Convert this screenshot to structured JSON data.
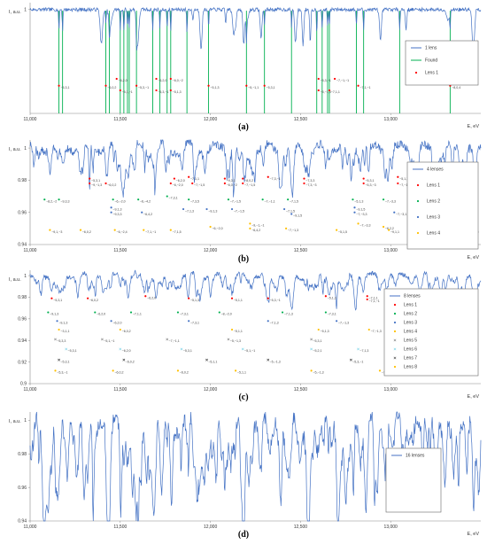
{
  "chart_data": [
    {
      "panel_label": "(a)",
      "type": "line",
      "xlabel": "E, eV",
      "ylabel": "I, a.u.",
      "xlim": [
        11000,
        13500
      ],
      "ylim": [
        0.955,
        1.003
      ],
      "x_ticks": [
        "11,000",
        "11,500",
        "12,000",
        "12,500",
        "13,000"
      ],
      "y_ticks": [
        "1"
      ],
      "legend": {
        "placement": "right",
        "entries": [
          "1 lens",
          "Found",
          "Lens 1"
        ]
      },
      "series_colors": [
        "#4472C4",
        "#00B050",
        "#FF0000"
      ],
      "found_lines": [
        11160,
        11180,
        11420,
        11440,
        11500,
        11520,
        11540,
        11550,
        11590,
        11680,
        11720,
        11760,
        11780,
        11870,
        11990,
        12200,
        12300,
        12450,
        12590,
        12620,
        12650,
        12660,
        12810,
        12850,
        13050,
        13330
      ],
      "markers": [
        {
          "x": 11160,
          "y": 0.967,
          "label": "−5,3,1"
        },
        {
          "x": 11420,
          "y": 0.967,
          "label": "−6,0,2"
        },
        {
          "x": 11480,
          "y": 0.97,
          "label": "−6,2,0"
        },
        {
          "x": 11500,
          "y": 0.965,
          "label": "−5,1,−1"
        },
        {
          "x": 11590,
          "y": 0.967,
          "label": "−5,3,−1"
        },
        {
          "x": 11700,
          "y": 0.97,
          "label": "−6,2,0"
        },
        {
          "x": 11700,
          "y": 0.965,
          "label": "−5,3,−1"
        },
        {
          "x": 11780,
          "y": 0.97,
          "label": "−6,0,−2"
        },
        {
          "x": 11780,
          "y": 0.965,
          "label": "−5,1,3"
        },
        {
          "x": 11990,
          "y": 0.967,
          "label": "−5,1,3"
        },
        {
          "x": 12200,
          "y": 0.967,
          "label": "−5,−1,1"
        },
        {
          "x": 12300,
          "y": 0.967,
          "label": "−5,3,1"
        },
        {
          "x": 12600,
          "y": 0.97,
          "label": "−5,3,−1"
        },
        {
          "x": 12600,
          "y": 0.965,
          "label": "−5,−1,3"
        },
        {
          "x": 12690,
          "y": 0.97,
          "label": "−7,−1,−1"
        },
        {
          "x": 12660,
          "y": 0.965,
          "label": "−7,1,1"
        },
        {
          "x": 12820,
          "y": 0.967,
          "label": "−7,1,−1"
        },
        {
          "x": 13330,
          "y": 0.967,
          "label": "−8,0,4"
        }
      ]
    },
    {
      "panel_label": "(b)",
      "type": "line",
      "xlabel": "E, eV",
      "ylabel": "I, a.u.",
      "xlim": [
        11000,
        13500
      ],
      "ylim": [
        0.94,
        1.005
      ],
      "x_ticks": [
        "11,000",
        "11,500",
        "12,000",
        "12,500",
        "13,000"
      ],
      "y_ticks": [
        "0.94",
        "0.96",
        "0.98",
        "1"
      ],
      "legend": {
        "placement": "right",
        "entries": [
          "4 lenses",
          "Lens 1",
          "Lens 2",
          "Lens 3",
          "Lens 4"
        ]
      },
      "series_colors": [
        "#4472C4",
        "#FF0000",
        "#00B050",
        "#4472C4",
        "#FFC000"
      ],
      "markers": [
        {
          "s": 0,
          "x": 11330,
          "y": 0.981,
          "label": "−5,3,1"
        },
        {
          "s": 0,
          "x": 11330,
          "y": 0.978,
          "label": "−9,−1,3"
        },
        {
          "s": 0,
          "x": 11420,
          "y": 0.978,
          "label": "−6,0,2"
        },
        {
          "s": 0,
          "x": 11800,
          "y": 0.981,
          "label": "−6,2,0"
        },
        {
          "s": 0,
          "x": 11780,
          "y": 0.978,
          "label": "−6,−2,0"
        },
        {
          "s": 0,
          "x": 11880,
          "y": 0.982,
          "label": "−7,1,1"
        },
        {
          "s": 0,
          "x": 11900,
          "y": 0.978,
          "label": "−7,−1,5"
        },
        {
          "s": 0,
          "x": 12080,
          "y": 0.981,
          "label": "−9,3,1"
        },
        {
          "s": 0,
          "x": 12080,
          "y": 0.978,
          "label": "−6,0,−2"
        },
        {
          "s": 0,
          "x": 12180,
          "y": 0.981,
          "label": "−8,0,2"
        },
        {
          "s": 0,
          "x": 12180,
          "y": 0.978,
          "label": "−7,−1,5"
        },
        {
          "s": 0,
          "x": 12320,
          "y": 0.982,
          "label": "−7,3,−1"
        },
        {
          "s": 0,
          "x": 12520,
          "y": 0.981,
          "label": "−7,3,3"
        },
        {
          "s": 0,
          "x": 12520,
          "y": 0.978,
          "label": "−7,3,−3"
        },
        {
          "s": 0,
          "x": 12850,
          "y": 0.981,
          "label": "−5,3,1"
        },
        {
          "s": 0,
          "x": 12850,
          "y": 0.978,
          "label": "−5,3,−3"
        },
        {
          "s": 0,
          "x": 13040,
          "y": 0.982,
          "label": "−5,1,3"
        },
        {
          "s": 0,
          "x": 13040,
          "y": 0.978,
          "label": "−7,−1,3"
        },
        {
          "s": 0,
          "x": 13140,
          "y": 0.978,
          "label": "−5,1,−3"
        },
        {
          "s": 0,
          "x": 13330,
          "y": 0.978,
          "label": "−8,2,−2"
        },
        {
          "s": 1,
          "x": 11080,
          "y": 0.968,
          "label": "−8,2,−2"
        },
        {
          "s": 1,
          "x": 11160,
          "y": 0.968,
          "label": "−9,3,3"
        },
        {
          "s": 1,
          "x": 11460,
          "y": 0.968,
          "label": "−6,−2,0"
        },
        {
          "s": 1,
          "x": 11600,
          "y": 0.968,
          "label": "−6,−4,2"
        },
        {
          "s": 1,
          "x": 11760,
          "y": 0.97,
          "label": "−7,3,1"
        },
        {
          "s": 1,
          "x": 11880,
          "y": 0.968,
          "label": "−7,3,5"
        },
        {
          "s": 1,
          "x": 12100,
          "y": 0.968,
          "label": "−7,−1,5"
        },
        {
          "s": 1,
          "x": 12290,
          "y": 0.968,
          "label": "−7,−1,1"
        },
        {
          "s": 1,
          "x": 12430,
          "y": 0.968,
          "label": "−7,1,5"
        },
        {
          "s": 1,
          "x": 12790,
          "y": 0.968,
          "label": "−5,1,3"
        },
        {
          "s": 1,
          "x": 12960,
          "y": 0.968,
          "label": "−7,−3,3"
        },
        {
          "s": 1,
          "x": 13160,
          "y": 0.968,
          "label": "−8,0,4"
        },
        {
          "s": 1,
          "x": 13330,
          "y": 0.968,
          "label": "−9,1,3"
        },
        {
          "s": 2,
          "x": 11450,
          "y": 0.963,
          "label": "−9,1,3"
        },
        {
          "s": 2,
          "x": 11450,
          "y": 0.96,
          "label": "−9,3,3"
        },
        {
          "s": 2,
          "x": 11620,
          "y": 0.96,
          "label": "−6,4,2"
        },
        {
          "s": 2,
          "x": 11850,
          "y": 0.962,
          "label": "−7,1,3"
        },
        {
          "s": 2,
          "x": 11980,
          "y": 0.962,
          "label": "−9,1,3"
        },
        {
          "s": 2,
          "x": 12120,
          "y": 0.962,
          "label": "−7,−1,5"
        },
        {
          "s": 2,
          "x": 12410,
          "y": 0.962,
          "label": "−7,1,5"
        },
        {
          "s": 2,
          "x": 12450,
          "y": 0.959,
          "label": "−9,1,5"
        },
        {
          "s": 2,
          "x": 12800,
          "y": 0.963,
          "label": "−9,1,5"
        },
        {
          "s": 2,
          "x": 12800,
          "y": 0.96,
          "label": "−7,−3,3"
        },
        {
          "s": 2,
          "x": 13020,
          "y": 0.96,
          "label": "−7,−3,1"
        },
        {
          "s": 2,
          "x": 13380,
          "y": 0.963,
          "label": "−8,0,0"
        },
        {
          "s": 2,
          "x": 13410,
          "y": 0.96,
          "label": "−8,−4,0"
        },
        {
          "s": 3,
          "x": 11110,
          "y": 0.949,
          "label": "−9,1,−3"
        },
        {
          "s": 3,
          "x": 11280,
          "y": 0.949,
          "label": "−6,0,2"
        },
        {
          "s": 3,
          "x": 11470,
          "y": 0.949,
          "label": "−6,−2,4"
        },
        {
          "s": 3,
          "x": 11630,
          "y": 0.949,
          "label": "−7,1,−1"
        },
        {
          "s": 3,
          "x": 11780,
          "y": 0.949,
          "label": "−7,1,5"
        },
        {
          "s": 3,
          "x": 12000,
          "y": 0.951,
          "label": "−6,−2,0"
        },
        {
          "s": 3,
          "x": 12220,
          "y": 0.953,
          "label": "−9,−1,−1"
        },
        {
          "s": 3,
          "x": 12220,
          "y": 0.95,
          "label": "−6,4,2"
        },
        {
          "s": 3,
          "x": 12420,
          "y": 0.95,
          "label": "−7,−1,3"
        },
        {
          "s": 3,
          "x": 12820,
          "y": 0.953,
          "label": "−7,−3,3"
        },
        {
          "s": 3,
          "x": 12700,
          "y": 0.949,
          "label": "−5,1,5"
        },
        {
          "s": 3,
          "x": 12960,
          "y": 0.951,
          "label": "−6,2,2"
        },
        {
          "s": 3,
          "x": 12990,
          "y": 0.949,
          "label": "−9,1,1"
        },
        {
          "s": 3,
          "x": 13150,
          "y": 0.949,
          "label": "−7,−1,5"
        },
        {
          "s": 3,
          "x": 13290,
          "y": 0.949,
          "label": "−7,−3,3"
        },
        {
          "s": 3,
          "x": 13430,
          "y": 0.949,
          "label": "−8,0,0"
        }
      ]
    },
    {
      "panel_label": "(c)",
      "type": "line",
      "xlabel": "E, eV",
      "ylabel": "I, a.u.",
      "xlim": [
        11000,
        13500
      ],
      "ylim": [
        0.9,
        1.005
      ],
      "x_ticks": [
        "11,000",
        "11,500",
        "12,000",
        "12,500",
        "13,000"
      ],
      "y_ticks": [
        "0.9",
        "0.92",
        "0.94",
        "0.96",
        "0.98",
        "1"
      ],
      "legend": {
        "placement": "right",
        "entries": [
          "8 lenses",
          "Lens 1",
          "Lens 2",
          "Lens 3",
          "Lens 4",
          "Lens 5",
          "Lens 6",
          "Lens 7",
          "Lens 8"
        ]
      },
      "series_colors": [
        "#4472C4",
        "#FF0000",
        "#00B050",
        "#4472C4",
        "#FFC000",
        "#7F7F7F",
        "#7AD3E8",
        "#404040",
        "#FFC000"
      ],
      "markers": [
        {
          "s": 0,
          "x": 11120,
          "y": 0.979,
          "label": "−5,3,1"
        },
        {
          "s": 0,
          "x": 11320,
          "y": 0.979,
          "label": "−6,0,2"
        },
        {
          "s": 0,
          "x": 11640,
          "y": 0.981,
          "label": "−6,2,0"
        },
        {
          "s": 0,
          "x": 11880,
          "y": 0.979,
          "label": "−5,1,3"
        },
        {
          "s": 0,
          "x": 12120,
          "y": 0.979,
          "label": "−5,1,1"
        },
        {
          "s": 0,
          "x": 12320,
          "y": 0.979,
          "label": "−5,3,−1"
        },
        {
          "s": 0,
          "x": 12640,
          "y": 0.981,
          "label": "−5,1,3"
        },
        {
          "s": 0,
          "x": 12870,
          "y": 0.981,
          "label": "−7,1,1"
        },
        {
          "s": 0,
          "x": 12870,
          "y": 0.978,
          "label": "−7,1,−1"
        },
        {
          "s": 0,
          "x": 13330,
          "y": 0.979,
          "label": "−8,0,4"
        },
        {
          "s": 1,
          "x": 11100,
          "y": 0.966,
          "label": "−9,1,3"
        },
        {
          "s": 1,
          "x": 11360,
          "y": 0.966,
          "label": "−6,2,0"
        },
        {
          "s": 1,
          "x": 11560,
          "y": 0.966,
          "label": "−7,1,1"
        },
        {
          "s": 1,
          "x": 11820,
          "y": 0.966,
          "label": "−7,3,1"
        },
        {
          "s": 1,
          "x": 12050,
          "y": 0.966,
          "label": "−8,−2,0"
        },
        {
          "s": 1,
          "x": 12400,
          "y": 0.966,
          "label": "−7,1,3"
        },
        {
          "s": 1,
          "x": 12640,
          "y": 0.966,
          "label": "−7,3,1"
        },
        {
          "s": 1,
          "x": 12980,
          "y": 0.966,
          "label": "−7,−1,1"
        },
        {
          "s": 1,
          "x": 13420,
          "y": 0.964,
          "label": "−4,4,0"
        },
        {
          "s": 2,
          "x": 11150,
          "y": 0.958,
          "label": "−9,1,3"
        },
        {
          "s": 2,
          "x": 11450,
          "y": 0.958,
          "label": "−6,2,0"
        },
        {
          "s": 2,
          "x": 11880,
          "y": 0.958,
          "label": "−7,3,1"
        },
        {
          "s": 2,
          "x": 12320,
          "y": 0.958,
          "label": "−7,1,3"
        },
        {
          "s": 2,
          "x": 12700,
          "y": 0.958,
          "label": "−7,−1,3"
        },
        {
          "s": 2,
          "x": 13000,
          "y": 0.958,
          "label": "−7,−1,1"
        },
        {
          "s": 3,
          "x": 11160,
          "y": 0.95,
          "label": "−3,1,1"
        },
        {
          "s": 3,
          "x": 11500,
          "y": 0.95,
          "label": "−6,0,2"
        },
        {
          "s": 3,
          "x": 12120,
          "y": 0.95,
          "label": "−5,1,1"
        },
        {
          "s": 3,
          "x": 12600,
          "y": 0.95,
          "label": "−5,1,3"
        },
        {
          "s": 3,
          "x": 12880,
          "y": 0.95,
          "label": "−7,−1,3"
        },
        {
          "s": 4,
          "x": 11140,
          "y": 0.941,
          "label": "−5,3,3"
        },
        {
          "s": 4,
          "x": 11400,
          "y": 0.941,
          "label": "−5,1,−1"
        },
        {
          "s": 4,
          "x": 11760,
          "y": 0.941,
          "label": "−7,−1,1"
        },
        {
          "s": 4,
          "x": 12100,
          "y": 0.941,
          "label": "−5,−1,3"
        },
        {
          "s": 4,
          "x": 12560,
          "y": 0.941,
          "label": "−5,3,1"
        },
        {
          "s": 4,
          "x": 12980,
          "y": 0.941,
          "label": "−7,1,1"
        },
        {
          "s": 5,
          "x": 11200,
          "y": 0.932,
          "label": "−5,3,1"
        },
        {
          "s": 5,
          "x": 11500,
          "y": 0.932,
          "label": "−6,2,0"
        },
        {
          "s": 5,
          "x": 11840,
          "y": 0.932,
          "label": "−5,3,1"
        },
        {
          "s": 5,
          "x": 12180,
          "y": 0.932,
          "label": "−5,1,−1"
        },
        {
          "s": 5,
          "x": 12560,
          "y": 0.932,
          "label": "−5,2,1"
        },
        {
          "s": 5,
          "x": 12820,
          "y": 0.932,
          "label": "−7,1,3"
        },
        {
          "s": 5,
          "x": 13400,
          "y": 0.924,
          "label": "−4,4,0"
        },
        {
          "s": 6,
          "x": 11160,
          "y": 0.922,
          "label": "−5,3,1"
        },
        {
          "s": 6,
          "x": 11520,
          "y": 0.922,
          "label": "−6,0,2"
        },
        {
          "s": 6,
          "x": 11980,
          "y": 0.922,
          "label": "−5,1,1"
        },
        {
          "s": 6,
          "x": 12320,
          "y": 0.922,
          "label": "−5,−1,3"
        },
        {
          "s": 6,
          "x": 12780,
          "y": 0.922,
          "label": "−5,3,−1"
        },
        {
          "s": 6,
          "x": 13080,
          "y": 0.922,
          "label": "−7,1,1"
        },
        {
          "s": 7,
          "x": 11140,
          "y": 0.912,
          "label": "−5,3,−1"
        },
        {
          "s": 7,
          "x": 11460,
          "y": 0.912,
          "label": "−6,0,2"
        },
        {
          "s": 7,
          "x": 11820,
          "y": 0.912,
          "label": "−6,0,2"
        },
        {
          "s": 7,
          "x": 12140,
          "y": 0.912,
          "label": "−5,1,1"
        },
        {
          "s": 7,
          "x": 12560,
          "y": 0.912,
          "label": "−5,−1,3"
        },
        {
          "s": 7,
          "x": 12940,
          "y": 0.912,
          "label": "−7,−1,1"
        },
        {
          "s": 7,
          "x": 13330,
          "y": 0.912,
          "label": "−4,0,4"
        }
      ]
    },
    {
      "panel_label": "(d)",
      "type": "line",
      "xlabel": "E, eV",
      "ylabel": "I, a.u.",
      "xlim": [
        11000,
        13500
      ],
      "ylim": [
        0.94,
        1.005
      ],
      "x_ticks": [
        "11,000",
        "11,500",
        "12,000",
        "12,500",
        "13,000"
      ],
      "y_ticks": [
        "0.94",
        "0.96",
        "0.98",
        "1"
      ],
      "legend": {
        "placement": "right",
        "entries": [
          "16 lenses"
        ]
      },
      "series_colors": [
        "#4472C4"
      ]
    }
  ]
}
